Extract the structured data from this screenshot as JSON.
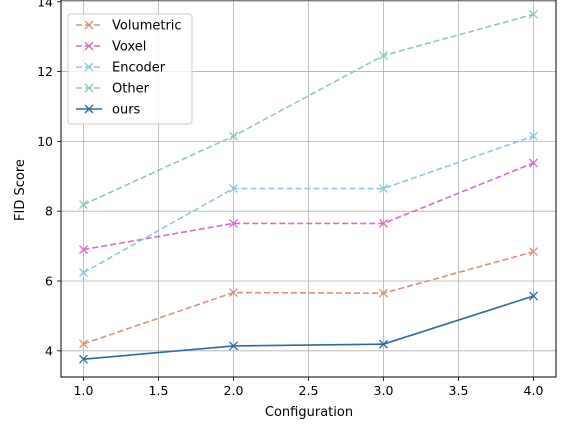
{
  "chart_data": {
    "type": "line",
    "title": "",
    "xlabel": "Configuration",
    "ylabel": "FID Score",
    "x": [
      1.0,
      2.0,
      3.0,
      4.0
    ],
    "xlim": [
      0.85,
      4.15
    ],
    "ylim": [
      3.25,
      14.05
    ],
    "xticks": [
      "1.0",
      "1.5",
      "2.0",
      "2.5",
      "3.0",
      "3.5",
      "4.0"
    ],
    "yticks": [
      "4",
      "6",
      "8",
      "10",
      "12",
      "14"
    ],
    "grid": true,
    "legend_position": "upper-left",
    "series": [
      {
        "name": "Volumetric",
        "values": [
          4.2,
          5.67,
          5.65,
          6.84
        ],
        "color": "#d4937a",
        "dashed": true
      },
      {
        "name": "Voxel",
        "values": [
          6.9,
          7.65,
          7.65,
          9.38
        ],
        "color": "#d16ec8",
        "dashed": true
      },
      {
        "name": "Encoder",
        "values": [
          6.24,
          8.65,
          8.65,
          10.15
        ],
        "color": "#8fc8dc",
        "dashed": true
      },
      {
        "name": "Other",
        "values": [
          8.19,
          10.15,
          12.46,
          13.64
        ],
        "color": "#8bcbb5",
        "dashed": true
      },
      {
        "name": "ours",
        "values": [
          3.76,
          4.14,
          4.19,
          5.57
        ],
        "color": "#2e6aa4",
        "dashed": false
      }
    ]
  }
}
